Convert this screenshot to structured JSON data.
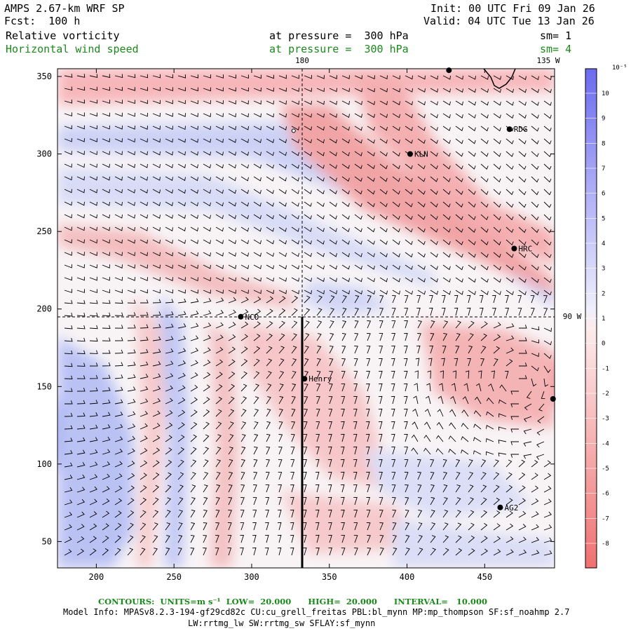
{
  "header": {
    "title": "AMPS 2.67-km WRF SP",
    "forecast": "Fcst:  100 h",
    "init": "Init: 00 UTC Fri 09 Jan 26",
    "valid": "Valid: 04 UTC Tue 13 Jan 26",
    "field1": {
      "name": "Relative vorticity",
      "level": "at pressure =  300 hPa",
      "smooth": "sm= 1"
    },
    "field2": {
      "name": "Horizontal wind speed",
      "level": "at pressure =  300 hPa",
      "smooth": "sm= 4"
    }
  },
  "map": {
    "x_ticks": [
      "200",
      "250",
      "300",
      "350",
      "400",
      "450"
    ],
    "y_ticks": [
      "350",
      "300",
      "250",
      "200",
      "150",
      "100",
      "50"
    ],
    "x_range": [
      175,
      495
    ],
    "y_range": [
      33,
      355
    ],
    "lon_labels": {
      "top_left": "180",
      "top_right": "135 W",
      "right": "90 W"
    },
    "stations": [
      {
        "name": "RDG",
        "x": 466,
        "y": 316
      },
      {
        "name": "KLN",
        "x": 402,
        "y": 300
      },
      {
        "name": "HRC",
        "x": 469,
        "y": 239
      },
      {
        "name": "NCO",
        "x": 293,
        "y": 195
      },
      {
        "name": "Henry",
        "x": 334,
        "y": 155
      },
      {
        "name": "AG2",
        "x": 460,
        "y": 72
      }
    ],
    "unlabeled_points": [
      {
        "x": 494,
        "y": 142
      },
      {
        "x": 427,
        "y": 354
      }
    ],
    "open_circle": {
      "x": 327,
      "y": 315
    }
  },
  "colorbar": {
    "unit": "10⁻⁵ s⁻¹",
    "labels": [
      "10",
      "9",
      "8",
      "7",
      "6",
      "5",
      "4",
      "3",
      "2",
      "1",
      "0",
      "-1",
      "-2",
      "-3",
      "-4",
      "-5",
      "-6",
      "-7",
      "-8"
    ],
    "positive_color": "#6b6bf0",
    "negative_color": "#f07070"
  },
  "footer": {
    "contours": "CONTOURS:  UNITS=m s⁻¹  LOW=  20.000      HIGH=  20.000      INTERVAL=   10.000",
    "model_info": "Model Info: MPASv8.2.3-194-gf29cd82c CU:cu_grell_freitas PBL:bl_mynn MP:mp_thompson SF:sf_noahmp 2.7",
    "model_info2": "LW:rrtmg_lw SW:rrtmg_sw SFLAY:sf_mynn"
  }
}
